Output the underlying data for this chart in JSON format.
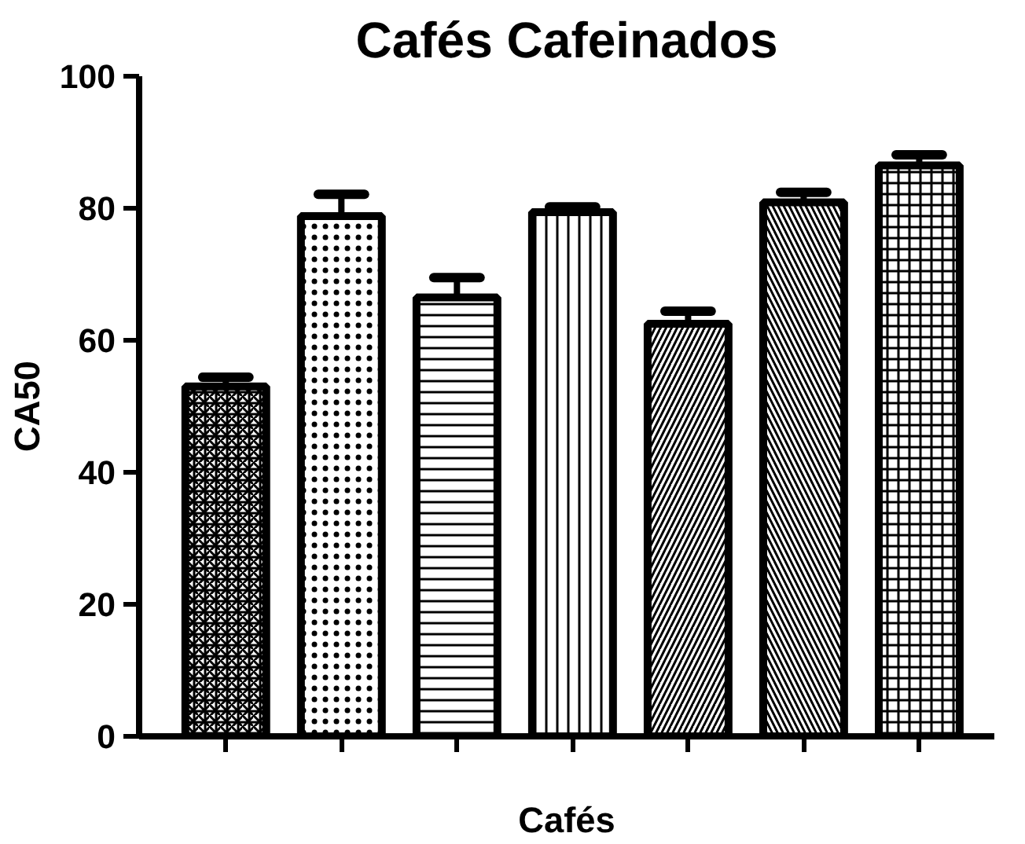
{
  "chart_data": {
    "type": "bar",
    "title": "Cafés Cafeinados",
    "xlabel": "Cafés",
    "ylabel": "CA50",
    "categories": [
      null,
      null,
      null,
      null,
      null,
      null,
      null
    ],
    "values": [
      53,
      78.8,
      66.5,
      79.4,
      62.5,
      80.9,
      86.5
    ],
    "errors": [
      [
        53,
        54.4
      ],
      [
        78.8,
        82.1
      ],
      [
        66.5,
        69.5
      ],
      [
        79.4,
        80.2
      ],
      [
        62.5,
        64.4
      ],
      [
        80.9,
        82.4
      ],
      [
        86.5,
        88.1
      ]
    ],
    "color": "#000000",
    "ylim": [
      0,
      100
    ],
    "yticks": [
      0,
      20,
      40,
      60,
      80,
      100
    ],
    "grid": false
  }
}
